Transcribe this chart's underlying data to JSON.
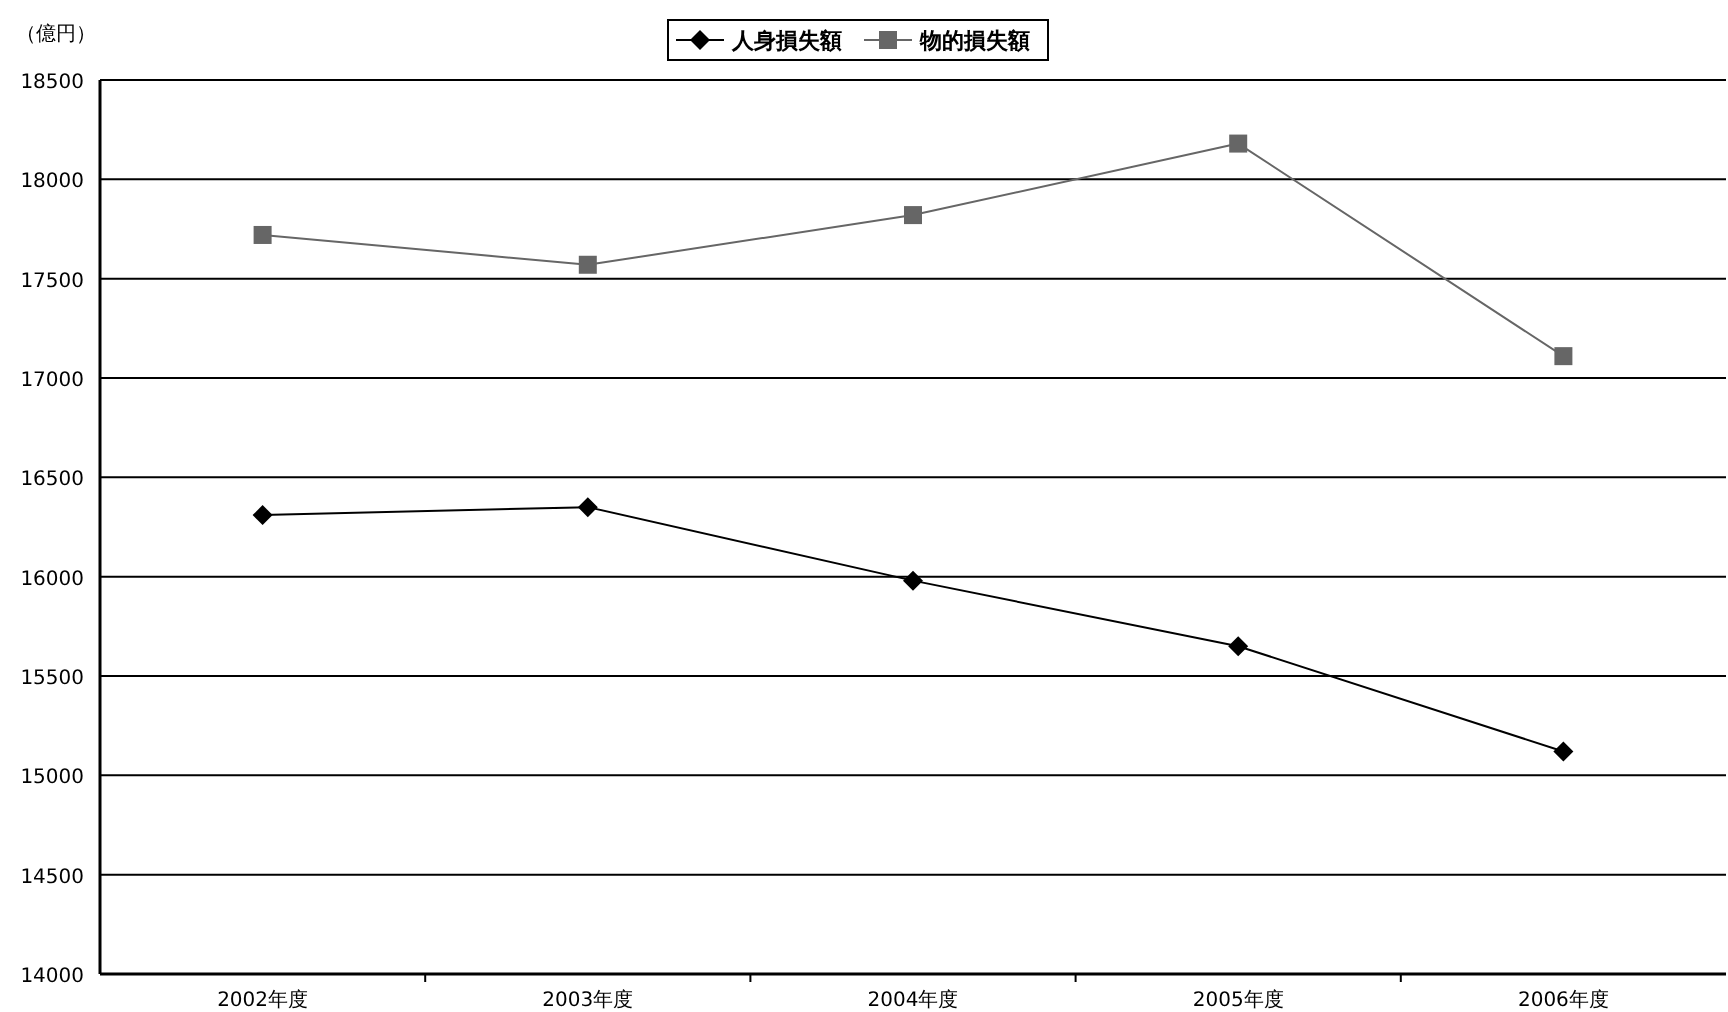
{
  "chart_data": {
    "type": "line",
    "ylabel": "（億円）",
    "categories": [
      "2002年度",
      "2003年度",
      "2004年度",
      "2005年度",
      "2006年度"
    ],
    "series": [
      {
        "name": "人身損失額",
        "color": "#000000",
        "marker": "diamond",
        "values": [
          16310,
          16350,
          15980,
          15650,
          15120
        ]
      },
      {
        "name": "物的損失額",
        "color": "#666666",
        "marker": "square",
        "values": [
          17720,
          17570,
          17820,
          18180,
          17110
        ]
      }
    ],
    "ylim": [
      14000,
      18500
    ],
    "yticks": [
      14000,
      14500,
      15000,
      15500,
      16000,
      16500,
      17000,
      17500,
      18000,
      18500
    ],
    "grid": "y",
    "legend": "top"
  }
}
